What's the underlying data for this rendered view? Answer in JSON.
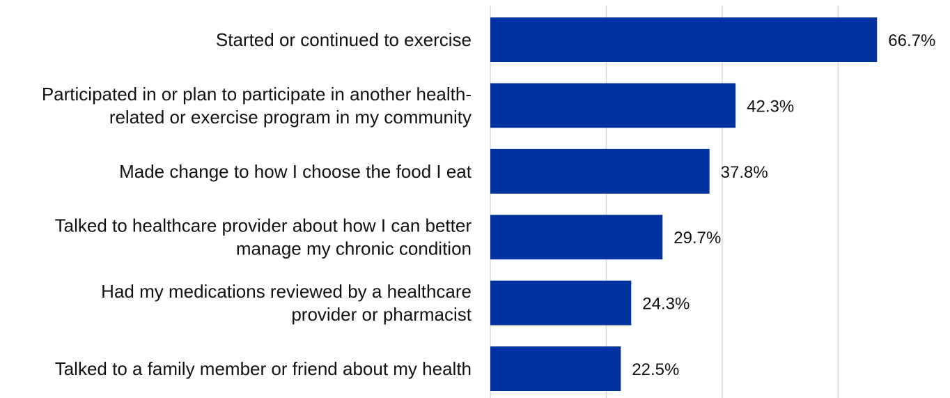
{
  "chart_data": {
    "type": "bar",
    "orientation": "horizontal",
    "categories": [
      "Started or continued to exercise",
      "Participated in or plan to participate in another health-related or exercise program in my community",
      "Made change to how I choose the food I eat",
      "Talked to healthcare provider about how I can better manage my chronic condition",
      "Had my medications reviewed by a healthcare provider or pharmacist",
      "Talked to a family member or friend about my health"
    ],
    "category_lines": [
      [
        "Started or continued to exercise"
      ],
      [
        "Participated in or plan to participate in another health-",
        "related or exercise program in my community"
      ],
      [
        "Made change to how I choose the food I eat"
      ],
      [
        "Talked to healthcare provider about how I can better",
        "manage my chronic condition"
      ],
      [
        "Had my medications reviewed by a healthcare",
        "provider or pharmacist"
      ],
      [
        "Talked to a family member or friend about my health"
      ]
    ],
    "values": [
      66.7,
      42.3,
      37.8,
      29.7,
      24.3,
      22.5
    ],
    "value_labels": [
      "66.7%",
      "42.3%",
      "37.8%",
      "29.7%",
      "24.3%",
      "22.5%"
    ],
    "xlim": [
      0,
      80
    ],
    "grid": true,
    "bar_color": "#0033a0",
    "title": "",
    "xlabel": "",
    "ylabel": ""
  }
}
